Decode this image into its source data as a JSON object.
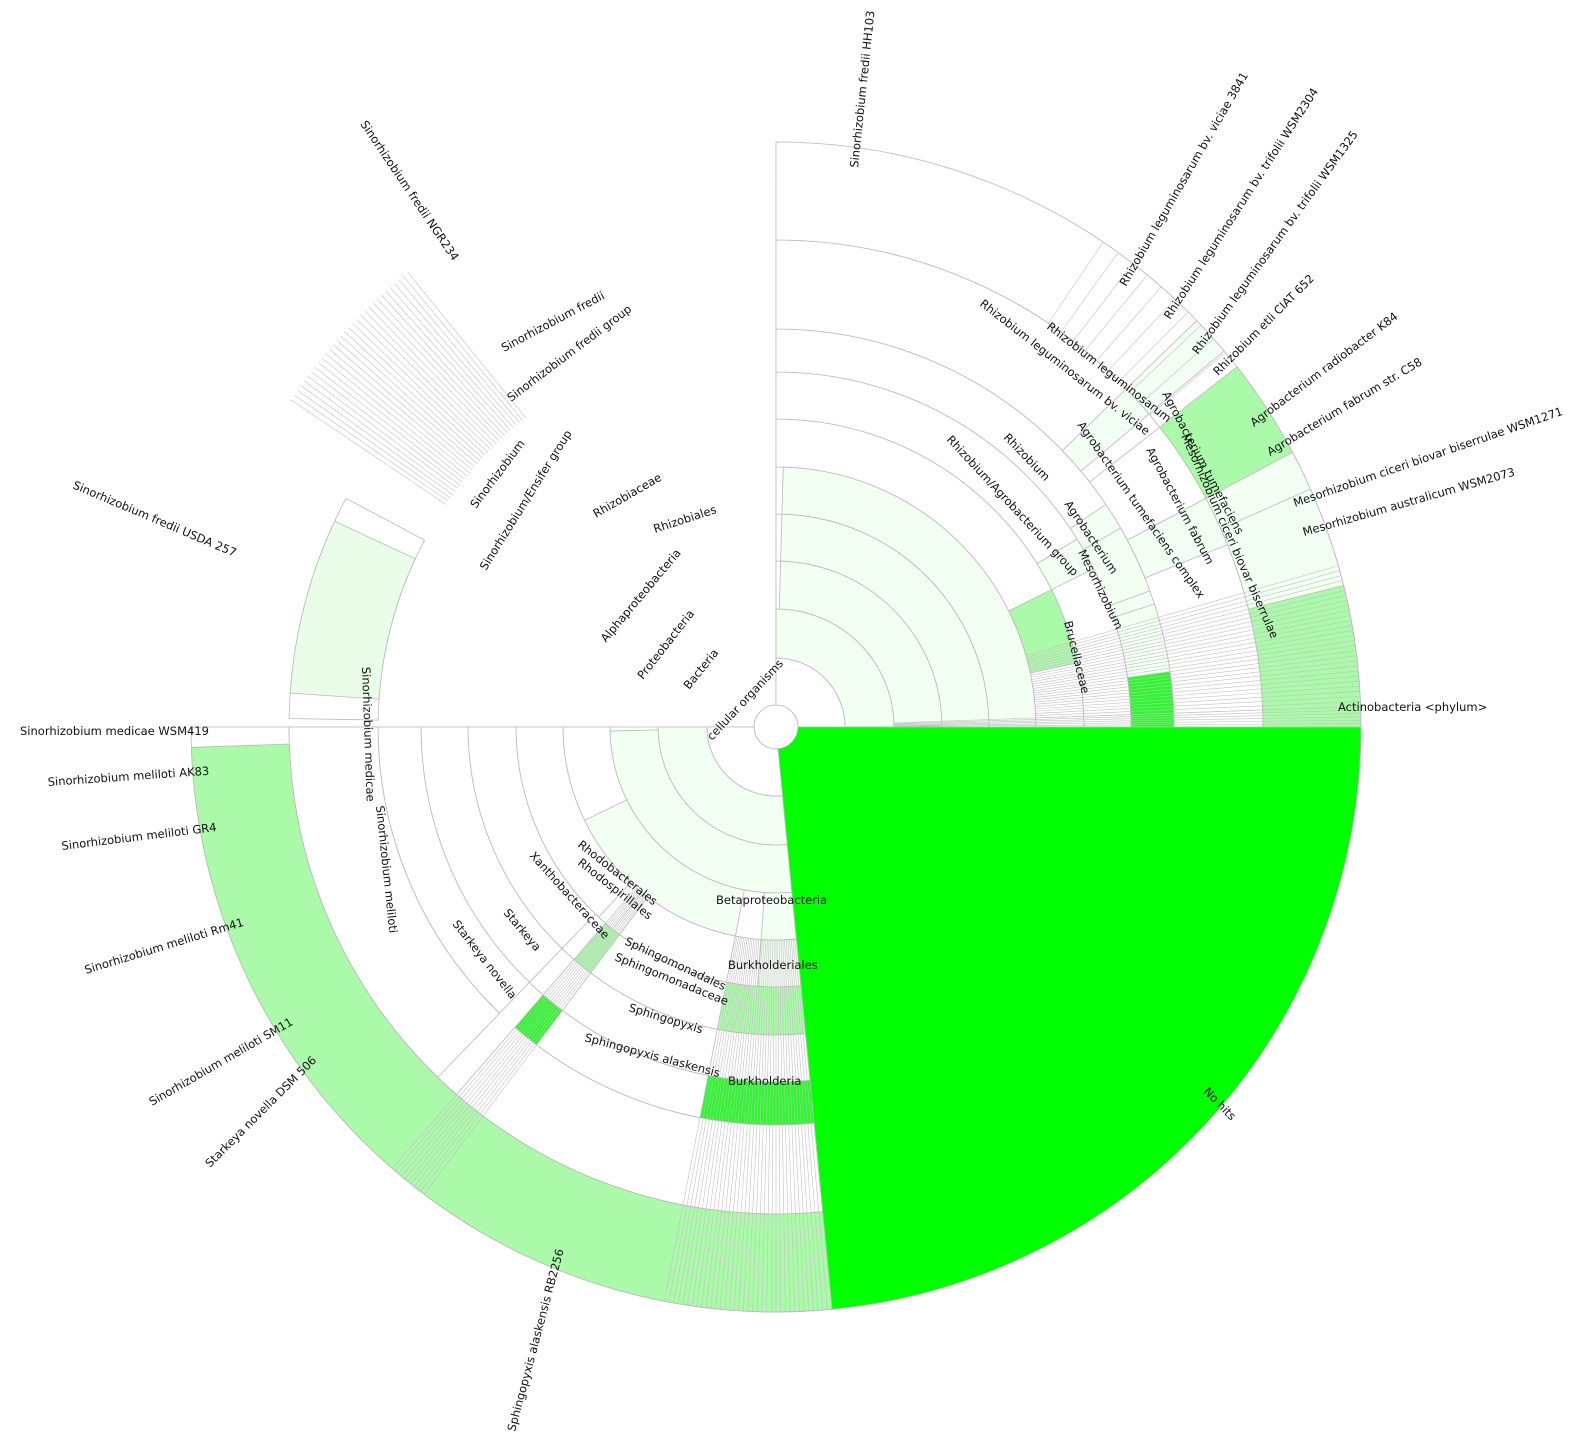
{
  "chart_data": {
    "type": "sunburst",
    "title": "",
    "levels": [
      "root",
      "superkingdom",
      "phylum",
      "class",
      "order",
      "family",
      "genus",
      "species group",
      "species",
      "strain"
    ],
    "colors": {
      "strong": "#2afa2a",
      "no_hits": "#00ff00",
      "medium": "#aafaaa",
      "pale": "#e9fde9",
      "very_pale": "#f4fff4",
      "white": "#ffffff",
      "outline": "#b9b9b9"
    },
    "root": {
      "label": "cellular organisms"
    },
    "segments": [
      {
        "label": "Bacteria",
        "level": 1,
        "start": 0,
        "end": 270,
        "shade": "very_pale"
      },
      {
        "label": "Proteobacteria",
        "level": 2,
        "start": 0,
        "end": 268,
        "shade": "very_pale"
      },
      {
        "label": "Actinobacteria <phylum>",
        "level": 2,
        "start": 268,
        "end": 270,
        "shade": "white"
      },
      {
        "label": "Alphaproteobacteria",
        "level": 3,
        "start": 0,
        "end": 251,
        "shade": "very_pale"
      },
      {
        "label": "Betaproteobacteria",
        "level": 3,
        "start": 251,
        "end": 268,
        "shade": "white"
      },
      {
        "label": "Rhizobiales",
        "level": 4,
        "start": 0,
        "end": 212,
        "shade": "very_pale"
      },
      {
        "label": "Rhodobacterales",
        "level": 4,
        "start": 212,
        "end": 216,
        "shade": "white"
      },
      {
        "label": "Rhodospirillales",
        "level": 4,
        "start": 216,
        "end": 220,
        "shade": "white"
      },
      {
        "label": "Sphingomonadales",
        "level": 4,
        "start": 220,
        "end": 251,
        "shade": "white"
      },
      {
        "label": "Burkholderiales",
        "level": 4,
        "start": 251,
        "end": 268,
        "shade": "white"
      },
      {
        "label": "Rhizobiaceae",
        "level": 5,
        "start": 0,
        "end": 208,
        "shade": "medium"
      },
      {
        "label": "Xanthobacteraceae",
        "level": 5,
        "start": 208,
        "end": 212,
        "shade": "white"
      },
      {
        "label": "Sphingomonadaceae",
        "level": 5,
        "start": 220,
        "end": 251,
        "shade": "white"
      },
      {
        "label": "Brucellaceae",
        "level": 5,
        "start": 0,
        "end": 1,
        "shade": "white"
      },
      {
        "label": "Burkholderia",
        "level": 6,
        "start": 251,
        "end": 268,
        "shade": "white"
      },
      {
        "label": "Sinorhizobium/Ensifer group",
        "level": 6,
        "start": 30,
        "end": 208,
        "shade": "white"
      },
      {
        "label": "Rhizobium/Agrobacterium group",
        "level": 6,
        "start": 0,
        "end": 30,
        "shade": "very_pale"
      },
      {
        "label": "Starkeya",
        "level": 6,
        "start": 208,
        "end": 212,
        "shade": "white"
      },
      {
        "label": "Sphingopyxis",
        "level": 6,
        "start": 220,
        "end": 251,
        "shade": "white"
      },
      {
        "label": "Sinorhizobium",
        "level": 7,
        "start": 30,
        "end": 208,
        "shade": "strong"
      },
      {
        "label": "Rhizobium",
        "level": 7,
        "start": 0,
        "end": 30,
        "shade": "very_pale"
      },
      {
        "label": "Agrobacterium",
        "level": 7,
        "start": 0,
        "end": 30,
        "shade": "very_pale"
      },
      {
        "label": "Mesorhizobium",
        "level": 7,
        "start": 0,
        "end": 30,
        "shade": "very_pale"
      },
      {
        "label": "Sinorhizobium fredii group",
        "level": 8,
        "start": 30,
        "end": 180,
        "shade": "white"
      },
      {
        "label": "Sinorhizobium medicae",
        "level": 8,
        "start": 180,
        "end": 208,
        "shade": "white"
      },
      {
        "label": "Sinorhizobium meliloti",
        "level": 8,
        "start": 180,
        "end": 208,
        "shade": "pale"
      },
      {
        "label": "Sinorhizobium fredii",
        "level": 9,
        "start": 30,
        "end": 180,
        "shade": "medium"
      },
      {
        "label": "Rhizobium leguminosarum",
        "level": 9,
        "start": 0,
        "end": 30,
        "shade": "very_pale"
      },
      {
        "label": "Rhizobium leguminosarum bv. viciae",
        "level": 9,
        "start": 0,
        "end": 30,
        "shade": "very_pale"
      },
      {
        "label": "Agrobacterium tumefaciens complex",
        "level": 9,
        "start": 0,
        "end": 30,
        "shade": "very_pale"
      },
      {
        "label": "Agrobacterium tumefaciens",
        "level": 9,
        "start": 0,
        "end": 30,
        "shade": "very_pale"
      },
      {
        "label": "Agrobacterium fabrum",
        "level": 9,
        "start": 0,
        "end": 30,
        "shade": "very_pale"
      },
      {
        "label": "Mesorhizobium ciceri biovar biserrulae",
        "level": 9,
        "start": 0,
        "end": 30,
        "shade": "very_pale"
      },
      {
        "label": "Starkeya novella",
        "level": 9,
        "start": 208,
        "end": 212,
        "shade": "white"
      },
      {
        "label": "Sphingopyxis alaskensis",
        "level": 9,
        "start": 220,
        "end": 251,
        "shade": "white"
      },
      {
        "label": "Sinorhizobium fredii HH103",
        "level": 10,
        "start": 30,
        "end": 80,
        "shade": "pale"
      },
      {
        "label": "Sinorhizobium fredii NGR234",
        "level": 10,
        "start": 80,
        "end": 130,
        "shade": "pale"
      },
      {
        "label": "Sinorhizobium fredii USDA 257",
        "level": 10,
        "start": 130,
        "end": 180,
        "shade": "pale"
      },
      {
        "label": "Sinorhizobium medicae WSM419",
        "level": 10,
        "start": 180,
        "end": 184,
        "shade": "very_pale"
      },
      {
        "label": "Sinorhizobium meliloti AK83",
        "level": 10,
        "start": 184,
        "end": 187,
        "shade": "very_pale"
      },
      {
        "label": "Sinorhizobium meliloti GR4",
        "level": 10,
        "start": 187,
        "end": 193,
        "shade": "very_pale"
      },
      {
        "label": "Sinorhizobium meliloti Rm41",
        "level": 10,
        "start": 193,
        "end": 202,
        "shade": "very_pale"
      },
      {
        "label": "Sinorhizobium meliloti SM11",
        "level": 10,
        "start": 202,
        "end": 208,
        "shade": "very_pale"
      },
      {
        "label": "Starkeya novella DSM 506",
        "level": 10,
        "start": 208,
        "end": 212,
        "shade": "white"
      },
      {
        "label": "Sphingopyxis alaskensis RB2256",
        "level": 10,
        "start": 220,
        "end": 251,
        "shade": "medium"
      },
      {
        "label": "Rhizobium leguminosarum bv. viciae 3841",
        "level": 10,
        "start": 0,
        "end": 30,
        "shade": "very_pale"
      },
      {
        "label": "Rhizobium leguminosarum bv. trifolii WSM2304",
        "level": 10,
        "start": 0,
        "end": 30,
        "shade": "very_pale"
      },
      {
        "label": "Rhizobium leguminosarum bv. trifolii WSM1325",
        "level": 10,
        "start": 0,
        "end": 30,
        "shade": "very_pale"
      },
      {
        "label": "Rhizobium etli CIAT 652",
        "level": 10,
        "start": 0,
        "end": 30,
        "shade": "very_pale"
      },
      {
        "label": "Agrobacterium radiobacter K84",
        "level": 10,
        "start": 0,
        "end": 30,
        "shade": "very_pale"
      },
      {
        "label": "Agrobacterium fabrum str. C58",
        "level": 10,
        "start": 0,
        "end": 30,
        "shade": "very_pale"
      },
      {
        "label": "Mesorhizobium ciceri biovar biserrulae WSM1271",
        "level": 10,
        "start": 0,
        "end": 30,
        "shade": "very_pale"
      },
      {
        "label": "Mesorhizobium australicum WSM2073",
        "level": 10,
        "start": 0,
        "end": 30,
        "shade": "very_pale"
      },
      {
        "label": "No hits",
        "level": 1,
        "start": 270,
        "end": 360,
        "shade": "no_hits"
      }
    ]
  }
}
